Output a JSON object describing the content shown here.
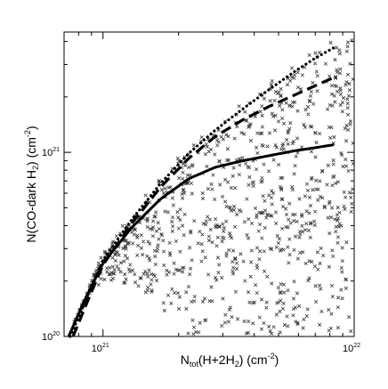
{
  "chart_data": {
    "type": "scatter",
    "title": "",
    "xlabel": {
      "pre": "N",
      "sub": "tot",
      "mid": "(H+2H",
      "sub2": "2",
      "post": ") (cm",
      "sup": "-2",
      "end": ")"
    },
    "ylabel": {
      "pre": "N(CO-dark H",
      "sub": "2",
      "mid": ") (cm",
      "sup": "-2",
      "end": ")"
    },
    "x_scale": "log",
    "y_scale": "log",
    "xlim": [
      7e+20,
      1e+22
    ],
    "ylim": [
      1e+20,
      4.5e+21
    ],
    "x_ticks": [
      {
        "value": 1e+21,
        "base": "10",
        "exp": "21"
      },
      {
        "value": 1e+22,
        "base": "10",
        "exp": "22"
      }
    ],
    "y_ticks": [
      {
        "value": 1e+20,
        "base": "10",
        "exp": "20"
      },
      {
        "value": 1e+21,
        "base": "10",
        "exp": "21"
      }
    ],
    "grid": false,
    "legend": "none",
    "scatter": {
      "marker": "x",
      "color": "#333333",
      "n_points": 900,
      "x_range": [
        7.5e+20,
        1e+22
      ],
      "upper_envelope": "dotted curve",
      "lower_envelope": "solid curve at low N_tot, ~1e20 at high N_tot"
    },
    "series": [
      {
        "style": "dotted",
        "color": "#000000",
        "x": [
          7.4e+20,
          8.5e+20,
          1e+21,
          1.3e+21,
          1.7e+21,
          2.2e+21,
          2.8e+21,
          3.6e+21,
          4.6e+21,
          5.8e+21,
          7e+21,
          8.3e+21
        ],
        "y": [
          1e+20,
          1.55e+20,
          2.6e+20,
          4.3e+20,
          6.8e+20,
          9.9e+20,
          1.32e+21,
          1.72e+21,
          2.2e+21,
          2.75e+21,
          3.25e+21,
          3.7e+21
        ]
      },
      {
        "style": "dashed",
        "color": "#000000",
        "x": [
          7.6e+20,
          8.5e+20,
          1e+21,
          1.3e+21,
          1.7e+21,
          2.2e+21,
          2.8e+21,
          3.6e+21,
          4.6e+21,
          5.8e+21,
          7e+21,
          8.3e+21
        ],
        "y": [
          1e+20,
          1.45e+20,
          2.45e+20,
          4.1e+20,
          6.5e+20,
          9.3e+20,
          1.22e+21,
          1.5e+21,
          1.78e+21,
          2.05e+21,
          2.3e+21,
          2.55e+21
        ]
      },
      {
        "style": "solid",
        "color": "#000000",
        "x": [
          7.3e+20,
          8.5e+20,
          1e+21,
          1.3e+21,
          1.7e+21,
          2.2e+21,
          2.8e+21,
          3.6e+21,
          4.6e+21,
          5.8e+21,
          7e+21,
          8.3e+21
        ],
        "y": [
          1e+20,
          1.6e+20,
          2.5e+20,
          3.9e+20,
          5.6e+20,
          7.2e+20,
          8.3e+20,
          9e+20,
          9.6e+20,
          1.02e+21,
          1.06e+21,
          1.1e+21
        ]
      }
    ]
  }
}
